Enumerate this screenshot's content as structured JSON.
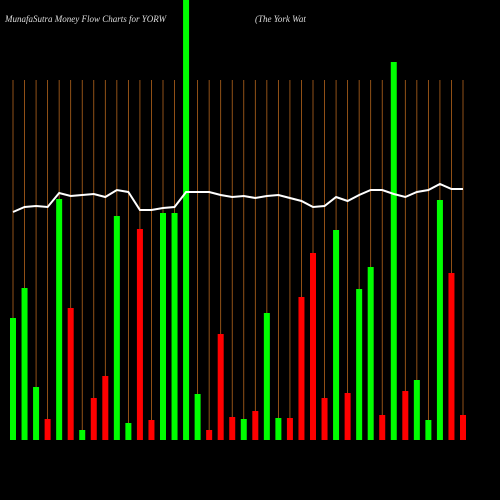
{
  "chart_data": {
    "type": "bar",
    "title": "MunafaSutra  Money Flow  Charts for YORW",
    "subtitle": "(The   York Wat",
    "ylim": [
      0,
      440
    ],
    "grid_color": "#b5651d",
    "values": [
      122,
      152,
      53,
      21,
      241,
      132,
      10,
      42,
      64,
      224,
      17,
      211,
      20,
      227,
      227,
      440,
      46,
      10,
      106,
      23,
      21,
      29,
      127,
      22,
      22,
      143,
      187,
      42,
      210,
      47,
      151,
      173,
      25,
      378,
      49,
      60,
      20,
      240,
      167,
      25
    ],
    "colors": [
      "#0f0",
      "#0f0",
      "#0f0",
      "#f00",
      "#0f0",
      "#f00",
      "#0f0",
      "#f00",
      "#f00",
      "#0f0",
      "#0f0",
      "#f00",
      "#f00",
      "#0f0",
      "#0f0",
      "#0f0",
      "#0f0",
      "#f00",
      "#f00",
      "#f00",
      "#0f0",
      "#f00",
      "#0f0",
      "#0f0",
      "#f00",
      "#f00",
      "#f00",
      "#f00",
      "#0f0",
      "#f00",
      "#0f0",
      "#0f0",
      "#f00",
      "#0f0",
      "#f00",
      "#0f0",
      "#0f0",
      "#0f0",
      "#f00",
      "#f00"
    ],
    "line": {
      "color": "#fff",
      "values": [
        228,
        233,
        234,
        233,
        247,
        244,
        245,
        246,
        243,
        250,
        248,
        230,
        230,
        232,
        233,
        248,
        248,
        248,
        245,
        243,
        244,
        242,
        244,
        245,
        242,
        239,
        233,
        234,
        243,
        239,
        245,
        250,
        250,
        246,
        243,
        248,
        250,
        256,
        251,
        251
      ]
    }
  }
}
